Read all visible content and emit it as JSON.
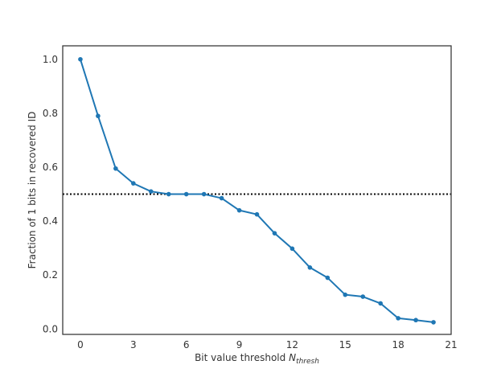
{
  "chart_data": {
    "type": "line",
    "title": "",
    "xlabel": "Bit value threshold ",
    "xlabel_var": "N",
    "xlabel_sub": "thresh",
    "ylabel": "Fraction of 1 bits in recovered ID",
    "xlim": [
      -1,
      21
    ],
    "ylim": [
      -0.02,
      1.05
    ],
    "xticks": [
      0,
      3,
      6,
      9,
      12,
      15,
      18,
      21
    ],
    "xtick_labels": [
      "0",
      "3",
      "6",
      "9",
      "12",
      "15",
      "18",
      "21"
    ],
    "yticks": [
      0.0,
      0.2,
      0.4,
      0.6,
      0.8,
      1.0
    ],
    "ytick_labels": [
      "0.0",
      "0.2",
      "0.4",
      "0.6",
      "0.8",
      "1.0"
    ],
    "grid": false,
    "series": [
      {
        "color": "#1f77b4",
        "x": [
          0,
          1,
          2,
          3,
          4,
          5,
          6,
          7,
          8,
          9,
          10,
          11,
          12,
          13,
          14,
          15,
          16,
          17,
          18,
          19,
          20
        ],
        "y": [
          1.0,
          0.79,
          0.595,
          0.54,
          0.51,
          0.5,
          0.5,
          0.5,
          0.485,
          0.44,
          0.425,
          0.355,
          0.298,
          0.228,
          0.19,
          0.127,
          0.12,
          0.095,
          0.04,
          0.033,
          0.025
        ]
      }
    ],
    "reference_line": {
      "y": 0.5,
      "style": "dotted",
      "color": "#000000"
    }
  }
}
